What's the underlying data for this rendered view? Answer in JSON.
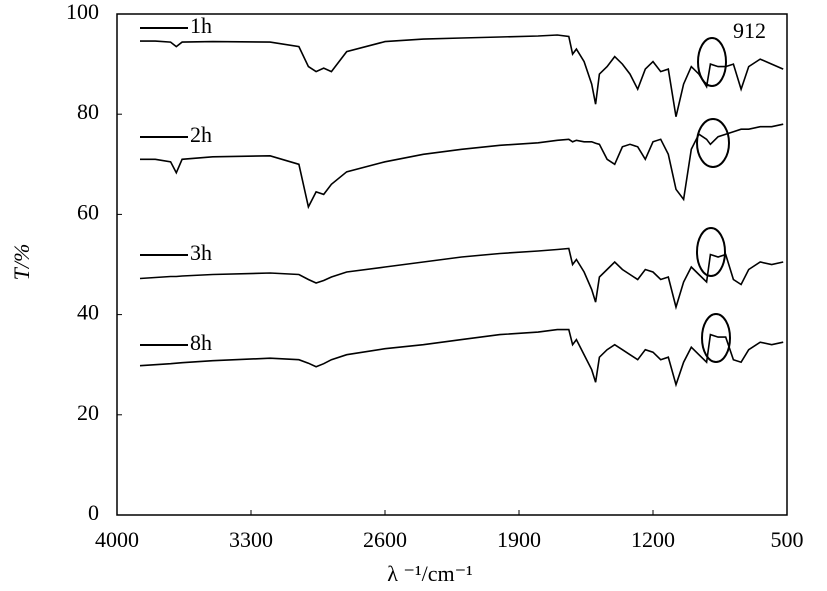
{
  "chart_data": {
    "type": "line",
    "x_label": "λ ⁻¹/cm⁻¹",
    "y_label": "T/%",
    "annotations": [
      "912"
    ],
    "x": [
      3880,
      3800,
      3720,
      3690,
      3660,
      3500,
      3200,
      3050,
      3000,
      2960,
      2920,
      2880,
      2800,
      2600,
      2400,
      2200,
      2000,
      1800,
      1700,
      1640,
      1620,
      1600,
      1560,
      1520,
      1500,
      1480,
      1440,
      1400,
      1360,
      1320,
      1280,
      1240,
      1200,
      1160,
      1120,
      1080,
      1040,
      1000,
      960,
      920,
      900,
      860,
      820,
      780,
      740,
      700,
      640,
      580,
      520
    ],
    "series": [
      {
        "name": "1h",
        "color": "#000000",
        "values": [
          94.6,
          94.6,
          94.4,
          93.5,
          94.4,
          94.5,
          94.4,
          93.5,
          89.5,
          88.5,
          89.2,
          88.5,
          92.5,
          94.5,
          95,
          95.2,
          95.4,
          95.6,
          95.8,
          95.5,
          92,
          93,
          90.5,
          86,
          82,
          88,
          89.5,
          91.5,
          90,
          88,
          85,
          89,
          90.5,
          88.5,
          89,
          79.5,
          86,
          89.5,
          88,
          85.5,
          90,
          89.5,
          89.5,
          90,
          85,
          89.5,
          91,
          90,
          89
        ]
      },
      {
        "name": "2h",
        "color": "#000000",
        "values": [
          71,
          71,
          70.5,
          68.3,
          71,
          71.5,
          71.7,
          70,
          61.5,
          64.5,
          64,
          66,
          68.5,
          70.5,
          72,
          73,
          73.8,
          74.3,
          74.8,
          75,
          74.5,
          74.8,
          74.5,
          74.5,
          74.2,
          74,
          71,
          70,
          73.5,
          74,
          73.5,
          71,
          74.5,
          75,
          72,
          65,
          63,
          73,
          76,
          75,
          74,
          75.5,
          76,
          76.5,
          77,
          77,
          77.5,
          77.5,
          78
        ]
      },
      {
        "name": "3h",
        "color": "#000000",
        "values": [
          47.2,
          47.4,
          47.6,
          47.6,
          47.7,
          48,
          48.3,
          48,
          47,
          46.3,
          46.8,
          47.5,
          48.5,
          49.5,
          50.5,
          51.5,
          52.2,
          52.7,
          53,
          53.2,
          50,
          51,
          48.5,
          45,
          42.5,
          47.5,
          49,
          50.5,
          49,
          48,
          47,
          49,
          48.5,
          47,
          47.5,
          41.5,
          46.5,
          49.5,
          48,
          46.5,
          52,
          51.5,
          52,
          47,
          46,
          49,
          50.5,
          50,
          50.5
        ]
      },
      {
        "name": "8h",
        "color": "#000000",
        "values": [
          29.8,
          30,
          30.2,
          30.3,
          30.4,
          30.8,
          31.3,
          31,
          30.3,
          29.6,
          30.2,
          31,
          32,
          33.2,
          34,
          35,
          36,
          36.5,
          37,
          37,
          34,
          35,
          32,
          29,
          26.5,
          31.5,
          33,
          34,
          33,
          32,
          31,
          33,
          32.5,
          31,
          31.5,
          26,
          30.5,
          33.5,
          32,
          30.5,
          36,
          35.5,
          35.5,
          31,
          30.5,
          33,
          34.5,
          34,
          34.5
        ]
      }
    ],
    "xlim": [
      4000,
      500
    ],
    "xticks": [
      4000,
      3300,
      2600,
      1900,
      1200,
      500
    ],
    "ylim": [
      0,
      100
    ],
    "yticks": [
      0,
      20,
      40,
      60,
      80,
      100
    ],
    "grid": false
  }
}
